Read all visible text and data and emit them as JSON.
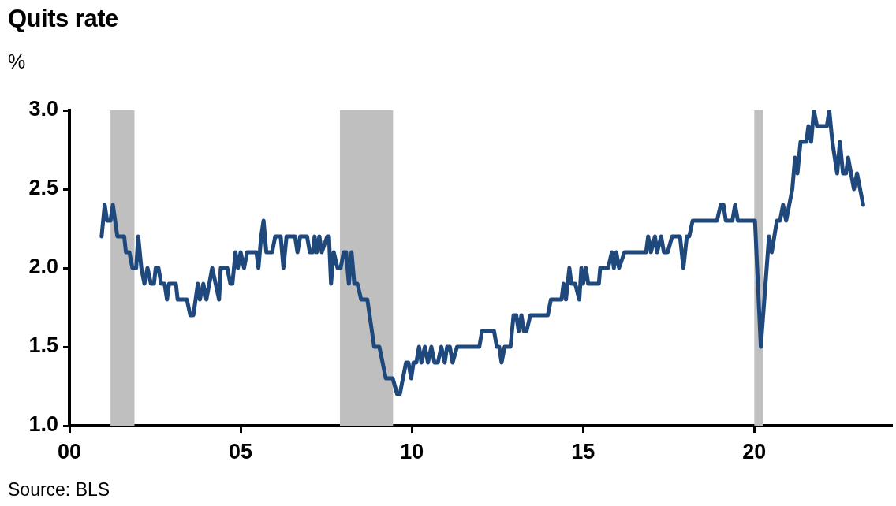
{
  "chart_data": {
    "type": "line",
    "title": "Quits rate",
    "ylabel": "%",
    "annotations": [
      "Source: BLS"
    ],
    "xlim": [
      2000,
      2024
    ],
    "xticks": [
      {
        "value": 2000,
        "label": "00"
      },
      {
        "value": 2005,
        "label": "05"
      },
      {
        "value": 2010,
        "label": "10"
      },
      {
        "value": 2015,
        "label": "15"
      },
      {
        "value": 2020,
        "label": "20"
      }
    ],
    "ylim": [
      1.0,
      3.0
    ],
    "yticks": [
      {
        "value": 1.0,
        "label": "1.0"
      },
      {
        "value": 1.5,
        "label": "1.5"
      },
      {
        "value": 2.0,
        "label": "2.0"
      },
      {
        "value": 2.5,
        "label": "2.5"
      },
      {
        "value": 3.0,
        "label": "3.0"
      }
    ],
    "grid": false,
    "legend": false,
    "marker": "none",
    "line_style": "solid",
    "bands": [
      {
        "axis": "x",
        "from": 2001.2,
        "to": 2001.9,
        "color": "#bfbfbf"
      },
      {
        "axis": "x",
        "from": 2007.9,
        "to": 2009.45,
        "color": "#bfbfbf"
      },
      {
        "axis": "x",
        "from": 2020.0,
        "to": 2020.25,
        "color": "#bfbfbf"
      }
    ],
    "series": [
      {
        "color": "#1f497d",
        "x": [
          2000.94,
          2001.03,
          2001.1,
          2001.2,
          2001.27,
          2001.4,
          2001.6,
          2001.65,
          2001.75,
          2001.84,
          2001.95,
          2002.01,
          2002.1,
          2002.19,
          2002.28,
          2002.38,
          2002.47,
          2002.52,
          2002.6,
          2002.68,
          2002.78,
          2002.85,
          2002.91,
          2003.11,
          2003.16,
          2003.43,
          2003.53,
          2003.62,
          2003.75,
          2003.81,
          2003.91,
          2004.0,
          2004.17,
          2004.27,
          2004.37,
          2004.42,
          2004.61,
          2004.7,
          2004.76,
          2004.85,
          2004.92,
          2005.0,
          2005.1,
          2005.19,
          2005.46,
          2005.52,
          2005.6,
          2005.67,
          2005.75,
          2005.92,
          2006.01,
          2006.17,
          2006.25,
          2006.34,
          2006.59,
          2006.66,
          2006.74,
          2006.94,
          2007.02,
          2007.11,
          2007.16,
          2007.22,
          2007.3,
          2007.37,
          2007.53,
          2007.58,
          2007.64,
          2007.72,
          2007.83,
          2007.92,
          2008.01,
          2008.08,
          2008.16,
          2008.24,
          2008.32,
          2008.41,
          2008.52,
          2008.7,
          2008.9,
          2009.05,
          2009.24,
          2009.44,
          2009.57,
          2009.65,
          2009.83,
          2009.9,
          2009.98,
          2010.05,
          2010.13,
          2010.21,
          2010.28,
          2010.38,
          2010.47,
          2010.57,
          2010.66,
          2010.76,
          2010.86,
          2010.96,
          2011.03,
          2011.11,
          2011.19,
          2011.32,
          2011.97,
          2012.05,
          2012.4,
          2012.48,
          2012.55,
          2012.62,
          2012.71,
          2012.88,
          2012.97,
          2013.05,
          2013.12,
          2013.2,
          2013.27,
          2013.35,
          2013.46,
          2013.97,
          2014.06,
          2014.37,
          2014.43,
          2014.5,
          2014.6,
          2014.66,
          2014.77,
          2014.89,
          2014.95,
          2015.0,
          2015.08,
          2015.15,
          2015.46,
          2015.5,
          2015.73,
          2015.84,
          2015.9,
          2015.97,
          2016.05,
          2016.21,
          2016.84,
          2016.9,
          2016.98,
          2017.1,
          2017.16,
          2017.28,
          2017.36,
          2017.47,
          2017.6,
          2017.83,
          2017.93,
          2018.03,
          2018.1,
          2018.2,
          2018.91,
          2019.02,
          2019.1,
          2019.17,
          2019.36,
          2019.44,
          2019.52,
          2020.02,
          2020.19,
          2020.43,
          2020.51,
          2020.66,
          2020.75,
          2020.84,
          2020.93,
          2021.11,
          2021.19,
          2021.26,
          2021.35,
          2021.52,
          2021.58,
          2021.66,
          2021.74,
          2021.83,
          2022.12,
          2022.19,
          2022.28,
          2022.42,
          2022.5,
          2022.59,
          2022.68,
          2022.74,
          2022.91,
          2023.0,
          2023.18
        ],
        "values": [
          2.2,
          2.4,
          2.3,
          2.3,
          2.4,
          2.2,
          2.2,
          2.1,
          2.1,
          2.0,
          2.0,
          2.2,
          2.0,
          1.9,
          2.0,
          1.9,
          1.9,
          2.0,
          2.0,
          1.9,
          1.9,
          1.8,
          1.9,
          1.9,
          1.8,
          1.8,
          1.7,
          1.7,
          1.9,
          1.8,
          1.9,
          1.8,
          2.0,
          1.9,
          1.8,
          2.0,
          2.0,
          1.9,
          1.9,
          2.1,
          2.0,
          2.1,
          2.0,
          2.1,
          2.1,
          2.0,
          2.2,
          2.3,
          2.1,
          2.1,
          2.2,
          2.2,
          2.0,
          2.2,
          2.2,
          2.1,
          2.2,
          2.2,
          2.1,
          2.1,
          2.2,
          2.1,
          2.2,
          2.1,
          2.2,
          2.2,
          1.9,
          2.1,
          2.0,
          2.0,
          2.1,
          2.1,
          1.9,
          2.1,
          1.9,
          1.9,
          1.8,
          1.8,
          1.5,
          1.5,
          1.3,
          1.3,
          1.2,
          1.2,
          1.4,
          1.4,
          1.3,
          1.4,
          1.4,
          1.5,
          1.4,
          1.5,
          1.4,
          1.5,
          1.4,
          1.4,
          1.5,
          1.4,
          1.5,
          1.5,
          1.4,
          1.5,
          1.5,
          1.6,
          1.6,
          1.5,
          1.5,
          1.4,
          1.5,
          1.5,
          1.7,
          1.7,
          1.6,
          1.7,
          1.6,
          1.6,
          1.7,
          1.7,
          1.8,
          1.8,
          1.9,
          1.8,
          2.0,
          1.9,
          1.9,
          1.8,
          2.0,
          1.9,
          2.0,
          1.9,
          1.9,
          2.0,
          2.0,
          2.1,
          2.0,
          2.1,
          2.0,
          2.1,
          2.1,
          2.2,
          2.1,
          2.2,
          2.1,
          2.2,
          2.1,
          2.1,
          2.2,
          2.2,
          2.0,
          2.2,
          2.2,
          2.3,
          2.3,
          2.4,
          2.4,
          2.3,
          2.3,
          2.4,
          2.3,
          2.3,
          1.5,
          2.2,
          2.1,
          2.3,
          2.3,
          2.4,
          2.3,
          2.5,
          2.7,
          2.6,
          2.8,
          2.8,
          2.9,
          2.8,
          3.0,
          2.9,
          2.9,
          3.0,
          2.8,
          2.6,
          2.8,
          2.6,
          2.6,
          2.7,
          2.5,
          2.6,
          2.4
        ]
      }
    ]
  }
}
